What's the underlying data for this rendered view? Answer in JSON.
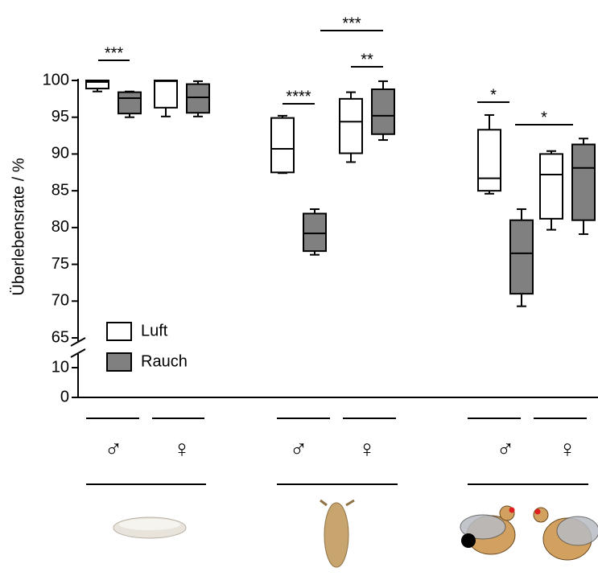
{
  "chart_data": {
    "type": "box",
    "y_label": "Überlebensrate / %",
    "categories": [
      "♂",
      "♀",
      "♂",
      "♀",
      "♂",
      "♀"
    ],
    "ylim": [
      65,
      100
    ],
    "yticks": [
      65,
      70,
      75,
      80,
      85,
      90,
      95,
      100
    ],
    "ylim_lower": [
      0,
      10
    ],
    "yticks_lower": [
      0,
      10
    ],
    "legend": "upper-left",
    "series": [
      {
        "name": "Luft",
        "color": "#ffffff",
        "min": [
          98.5,
          95.1,
          87.4,
          88.9,
          84.6,
          79.7
        ],
        "q1": [
          98.9,
          96.3,
          87.5,
          90.1,
          85.0,
          81.2
        ],
        "median": [
          99.8,
          99.9,
          90.7,
          94.4,
          86.7,
          87.2
        ],
        "q3": [
          100,
          100,
          94.9,
          97.5,
          93.3,
          90.0
        ],
        "max": [
          100,
          100,
          95.2,
          98.4,
          95.3,
          90.4
        ]
      },
      {
        "name": "Rauch",
        "color": "#808080",
        "min": [
          95.0,
          95.1,
          76.3,
          91.9,
          69.3,
          79.1
        ],
        "q1": [
          95.5,
          95.6,
          76.8,
          92.7,
          71.0,
          81.0
        ],
        "median": [
          97.6,
          97.7,
          79.2,
          95.2,
          76.5,
          88.1
        ],
        "q3": [
          98.4,
          99.5,
          81.9,
          98.8,
          81.0,
          91.3
        ],
        "max": [
          98.5,
          99.9,
          82.5,
          99.9,
          82.5,
          92.1
        ]
      }
    ],
    "annotations": [
      "***",
      "****",
      "**",
      "***",
      "*",
      "*"
    ]
  }
}
